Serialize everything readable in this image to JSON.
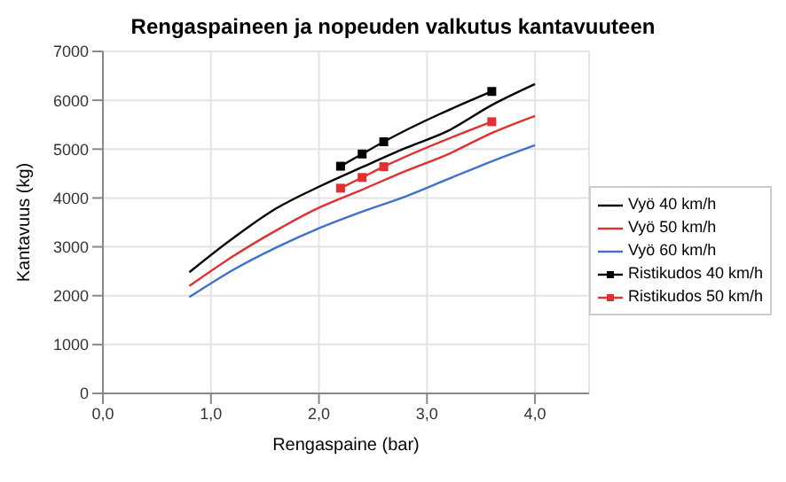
{
  "chart_data": {
    "type": "line",
    "title": "Rengaspaineen ja nopeuden valkutus kantavuuteen",
    "xlabel": "Rengaspaine (bar)",
    "ylabel": "Kantavuus (kg)",
    "xlim": [
      0,
      4.5
    ],
    "xticks": [
      {
        "value": 0,
        "label": "0,0"
      },
      {
        "value": 1,
        "label": "1,0"
      },
      {
        "value": 2,
        "label": "2,0"
      },
      {
        "value": 3,
        "label": "3,0"
      },
      {
        "value": 4,
        "label": "4,0"
      }
    ],
    "ylim": [
      0,
      7000
    ],
    "yticks": [
      0,
      1000,
      2000,
      3000,
      4000,
      5000,
      6000,
      7000
    ],
    "grid": true,
    "legend": "right",
    "series": [
      {
        "name": "Vyö 40 km/h",
        "color": "#000000",
        "marker": "none",
        "x": [
          0.8,
          1.2,
          1.6,
          2.0,
          2.4,
          2.8,
          3.2,
          3.6,
          4.0
        ],
        "values": [
          2480,
          3170,
          3780,
          4230,
          4630,
          5020,
          5380,
          5900,
          6330
        ]
      },
      {
        "name": "Vyö 50 km/h",
        "color": "#e03030",
        "marker": "none",
        "x": [
          0.8,
          1.2,
          1.6,
          2.0,
          2.4,
          2.8,
          3.2,
          3.6,
          4.0
        ],
        "values": [
          2200,
          2800,
          3330,
          3800,
          4170,
          4550,
          4900,
          5330,
          5680
        ]
      },
      {
        "name": "Vyö 60 km/h",
        "color": "#4070d0",
        "marker": "none",
        "x": [
          0.8,
          1.2,
          1.6,
          2.0,
          2.4,
          2.8,
          3.2,
          3.6,
          4.0
        ],
        "values": [
          1970,
          2520,
          2980,
          3380,
          3720,
          4030,
          4390,
          4750,
          5080
        ]
      },
      {
        "name": "Ristikudos 40 km/h",
        "color": "#000000",
        "marker": "square",
        "x": [
          2.2,
          2.4,
          2.6,
          3.6
        ],
        "values": [
          4650,
          4900,
          5150,
          6180
        ]
      },
      {
        "name": "Ristikudos 50 km/h",
        "color": "#e03030",
        "marker": "square",
        "x": [
          2.2,
          2.4,
          2.6,
          3.6
        ],
        "values": [
          4200,
          4420,
          4640,
          5560
        ]
      }
    ]
  }
}
